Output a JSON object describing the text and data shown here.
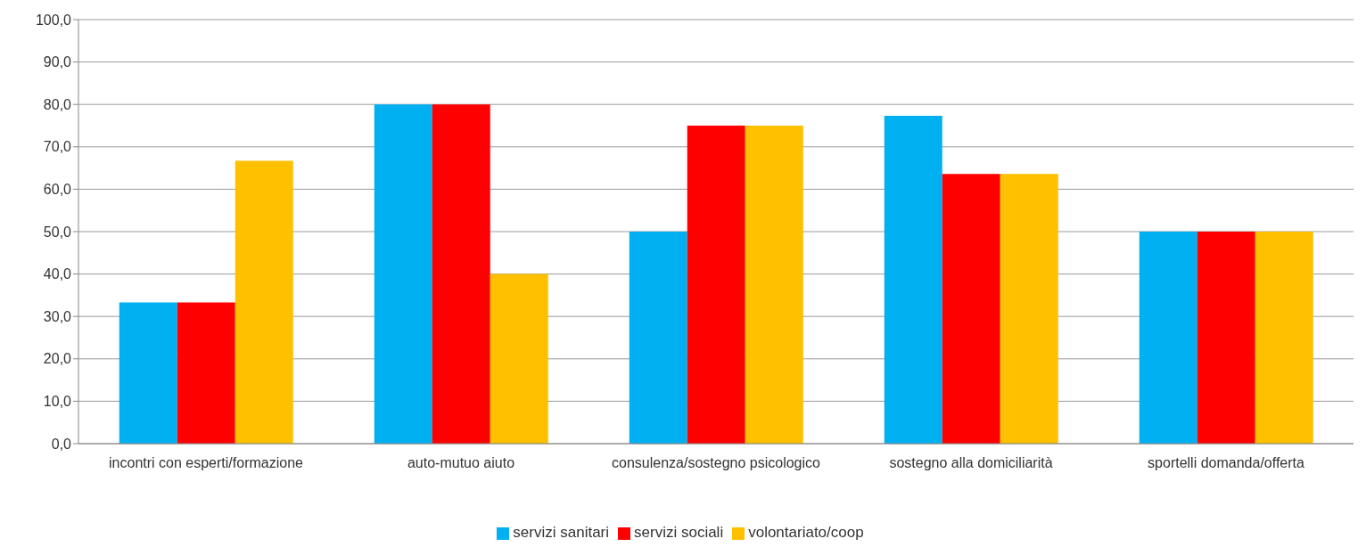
{
  "chart_data": {
    "type": "bar",
    "categories": [
      "incontri con esperti/formazione",
      "auto-mutuo aiuto",
      "consulenza/sostegno psicologico",
      "sostegno alla domiciliarità",
      "sportelli domanda/offerta"
    ],
    "series": [
      {
        "name": "servizi sanitari",
        "color": "#00b0f0",
        "values": [
          33.3,
          80.0,
          50.0,
          77.3,
          50.0
        ]
      },
      {
        "name": "servizi sociali",
        "color": "#ff0000",
        "values": [
          33.3,
          80.0,
          75.0,
          63.6,
          50.0
        ]
      },
      {
        "name": "volontariato/coop",
        "color": "#ffc000",
        "values": [
          66.7,
          40.0,
          75.0,
          63.6,
          50.0
        ]
      }
    ],
    "ylim": [
      0,
      100
    ],
    "yticks": [
      {
        "value": 0,
        "label": "0,0"
      },
      {
        "value": 10,
        "label": "10,0"
      },
      {
        "value": 20,
        "label": "20,0"
      },
      {
        "value": 30,
        "label": "30,0"
      },
      {
        "value": 40,
        "label": "40,0"
      },
      {
        "value": 50,
        "label": "50,0"
      },
      {
        "value": 60,
        "label": "60,0"
      },
      {
        "value": 70,
        "label": "70,0"
      },
      {
        "value": 80,
        "label": "80,0"
      },
      {
        "value": 90,
        "label": "90,0"
      },
      {
        "value": 100,
        "label": "100,0"
      }
    ],
    "grid": "y",
    "legend": "bottom"
  }
}
